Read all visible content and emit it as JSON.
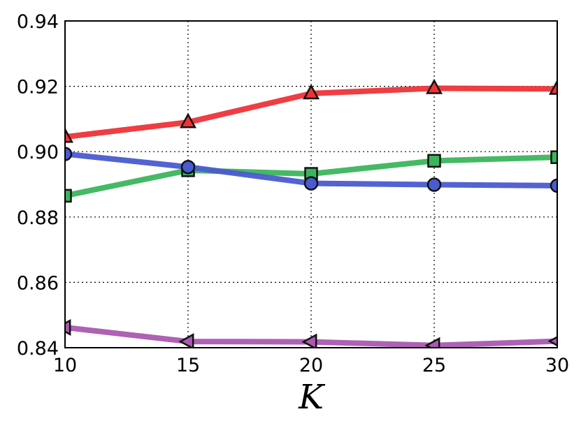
{
  "chart_data": {
    "type": "line",
    "title": "",
    "xlabel": "K",
    "ylabel": "",
    "x": [
      10,
      15,
      20,
      25,
      30
    ],
    "xlim": [
      10,
      30
    ],
    "ylim": [
      0.84,
      0.94
    ],
    "xticks": [
      "10",
      "15",
      "20",
      "25",
      "30"
    ],
    "yticks": [
      "0.84",
      "0.86",
      "0.88",
      "0.90",
      "0.92",
      "0.94"
    ],
    "grid": true,
    "legend": "none",
    "series": [
      {
        "marker": "triangle-up",
        "color": "#ee3338",
        "values": [
          0.9045,
          0.909,
          0.9178,
          0.9194,
          0.9192
        ]
      },
      {
        "marker": "square",
        "color": "#3bb55c",
        "values": [
          0.8865,
          0.8943,
          0.8932,
          0.8972,
          0.8983
        ]
      },
      {
        "marker": "circle",
        "color": "#4a5bd0",
        "values": [
          0.8993,
          0.8953,
          0.8903,
          0.8899,
          0.8896
        ]
      },
      {
        "marker": "triangle-left",
        "color": "#aa5ab0",
        "values": [
          0.8462,
          0.8419,
          0.8418,
          0.8407,
          0.842
        ]
      }
    ]
  }
}
